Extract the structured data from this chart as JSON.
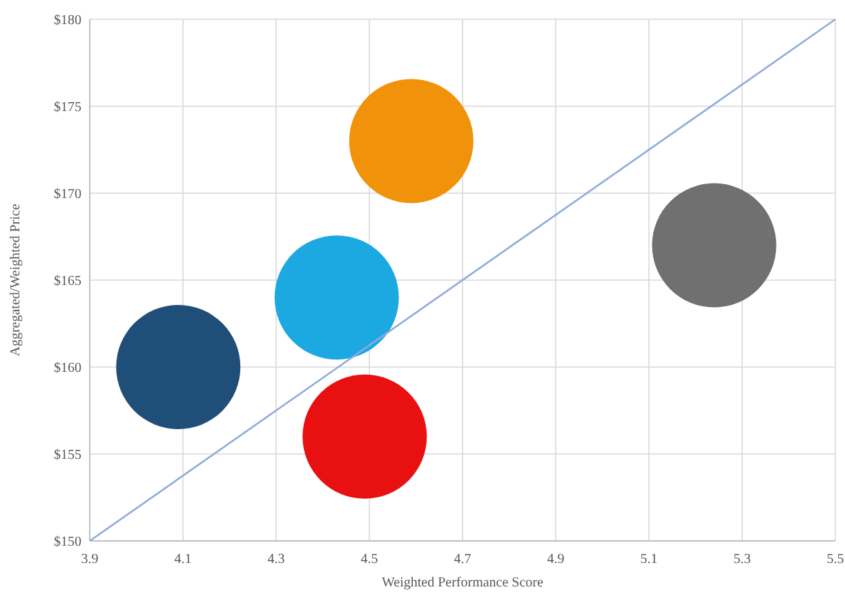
{
  "chart_data": {
    "type": "bubble",
    "xlabel": "Weighted Performance Score",
    "ylabel": "Aggregated/Weighted Price",
    "xlim": [
      3.9,
      5.5
    ],
    "xticks": [
      3.9,
      4.1,
      4.3,
      4.5,
      4.7,
      4.9,
      5.1,
      5.3,
      5.5
    ],
    "ylim": [
      150,
      180
    ],
    "yticks": [
      {
        "value": 150,
        "label": "$150"
      },
      {
        "value": 155,
        "label": "$155"
      },
      {
        "value": 160,
        "label": "$160"
      },
      {
        "value": 165,
        "label": "$165"
      },
      {
        "value": 170,
        "label": "$170"
      },
      {
        "value": 175,
        "label": "$175"
      },
      {
        "value": 180,
        "label": "$180"
      }
    ],
    "grid": true,
    "series": [
      {
        "x": [
          4.09,
          4.43,
          4.59,
          4.49,
          5.24
        ],
        "values": [
          160,
          164,
          173,
          156,
          167
        ],
        "sizes": [
          1,
          1,
          1,
          1,
          1
        ],
        "colors": [
          "#1f4e79",
          "#1ca8e0",
          "#f0930a",
          "#e81010",
          "#707070"
        ]
      },
      {
        "type": "line",
        "x": [
          3.9,
          5.5
        ],
        "values": [
          150,
          180
        ],
        "color": "#8faadc"
      }
    ]
  }
}
